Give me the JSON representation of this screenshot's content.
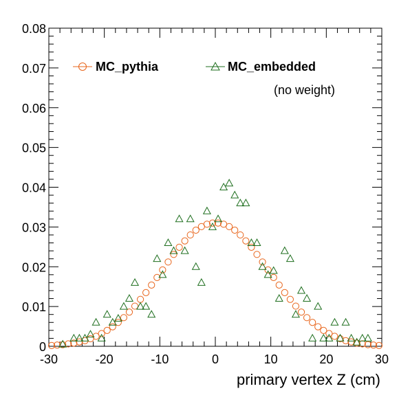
{
  "chart_data": {
    "type": "scatter",
    "xlabel": "primary vertex Z (cm)",
    "ylabel": "",
    "xlim": [
      -30,
      30
    ],
    "ylim": [
      0,
      0.08
    ],
    "x_ticks": [
      "-30",
      "-20",
      "-10",
      "0",
      "10",
      "20",
      "30"
    ],
    "y_ticks": [
      "0",
      "0.01",
      "0.02",
      "0.03",
      "0.04",
      "0.05",
      "0.06",
      "0.07",
      "0.08"
    ],
    "grid": false,
    "legend_position": "top",
    "annotation": "(no weight)",
    "series": [
      {
        "name": "MC_pythia",
        "marker": "open-circle",
        "color": "#e8641a",
        "x": [
          -29.5,
          -28.5,
          -27.5,
          -26.5,
          -25.5,
          -24.5,
          -23.5,
          -22.5,
          -21.5,
          -20.5,
          -19.5,
          -18.5,
          -17.5,
          -16.5,
          -15.5,
          -14.5,
          -13.5,
          -12.5,
          -11.5,
          -10.5,
          -9.5,
          -8.5,
          -7.5,
          -6.5,
          -5.5,
          -4.5,
          -3.5,
          -2.5,
          -1.5,
          -0.5,
          0.5,
          1.5,
          2.5,
          3.5,
          4.5,
          5.5,
          6.5,
          7.5,
          8.5,
          9.5,
          10.5,
          11.5,
          12.5,
          13.5,
          14.5,
          15.5,
          16.5,
          17.5,
          18.5,
          19.5,
          20.5,
          21.5,
          22.5,
          23.5,
          24.5,
          25.5,
          26.5,
          27.5,
          28.5,
          29.5
        ],
        "values": [
          0.0002,
          0.0003,
          0.0004,
          0.0006,
          0.0008,
          0.0011,
          0.0014,
          0.0019,
          0.0025,
          0.0032,
          0.004,
          0.0049,
          0.006,
          0.0072,
          0.0086,
          0.0101,
          0.0118,
          0.0135,
          0.0154,
          0.0173,
          0.0192,
          0.0212,
          0.0231,
          0.0249,
          0.0265,
          0.028,
          0.0292,
          0.0301,
          0.0307,
          0.031,
          0.031,
          0.0307,
          0.0301,
          0.0292,
          0.028,
          0.0265,
          0.0249,
          0.0231,
          0.0212,
          0.0192,
          0.0173,
          0.0154,
          0.0135,
          0.0118,
          0.0101,
          0.0086,
          0.0072,
          0.006,
          0.0049,
          0.004,
          0.0032,
          0.0025,
          0.0019,
          0.0014,
          0.0011,
          0.0008,
          0.0006,
          0.0004,
          0.0003,
          0.0002
        ]
      },
      {
        "name": "MC_embedded",
        "marker": "open-triangle",
        "color": "#1e6e1e",
        "x": [
          -27.5,
          -25.5,
          -24.5,
          -23.5,
          -22.5,
          -21.5,
          -20.5,
          -19.5,
          -18.5,
          -17.5,
          -16.5,
          -15.5,
          -14.5,
          -13.5,
          -12.5,
          -11.5,
          -10.5,
          -9.5,
          -8.5,
          -7.5,
          -6.5,
          -5.5,
          -4.5,
          -3.5,
          -2.5,
          -1.5,
          -0.5,
          0.5,
          1.5,
          2.5,
          3.5,
          4.5,
          5.5,
          6.5,
          7.5,
          8.5,
          9.5,
          10.5,
          11.5,
          12.5,
          13.5,
          14.5,
          15.5,
          16.5,
          17.5,
          18.5,
          19.5,
          20.5,
          21.5,
          22.5,
          23.5,
          24.5,
          25.5,
          26.5,
          27.5
        ],
        "values": [
          0.0005,
          0.002,
          0.002,
          0.002,
          0.003,
          0.006,
          0.002,
          0.008,
          0.006,
          0.007,
          0.01,
          0.012,
          0.016,
          0.01,
          0.01,
          0.008,
          0.022,
          0.018,
          0.026,
          0.024,
          0.032,
          0.024,
          0.032,
          0.02,
          0.016,
          0.034,
          0.03,
          0.032,
          0.04,
          0.041,
          0.038,
          0.036,
          0.036,
          0.026,
          0.026,
          0.02,
          0.018,
          0.019,
          0.012,
          0.024,
          0.022,
          0.008,
          0.014,
          0.012,
          0.002,
          0.01,
          0.002,
          0.002,
          0.006,
          0.002,
          0.006,
          0.002,
          0.001,
          0.002,
          0.002
        ]
      }
    ]
  }
}
